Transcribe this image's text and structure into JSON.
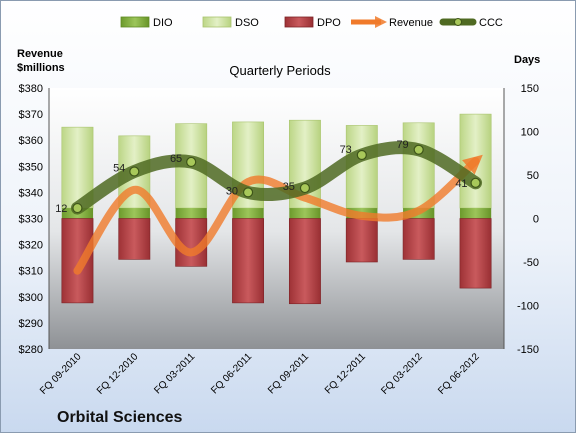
{
  "company": "Orbital Sciences",
  "chart_data": {
    "type": "combo",
    "title": "Quarterly Periods",
    "left_axis_label_line1": "Revenue",
    "left_axis_label_line2": "$millions",
    "right_axis_label": "Days",
    "left_ylim": [
      280,
      380
    ],
    "left_ticks": [
      "$280",
      "$290",
      "$300",
      "$310",
      "$320",
      "$330",
      "$340",
      "$350",
      "$360",
      "$370",
      "$380"
    ],
    "right_ylim": [
      -150,
      150
    ],
    "right_ticks": [
      "-150",
      "-100",
      "-50",
      "0",
      "50",
      "100",
      "150"
    ],
    "categories": [
      "FQ 09-2010",
      "FQ 12-2010",
      "FQ 03-2011",
      "FQ 06-2011",
      "FQ 09-2011",
      "FQ 12-2011",
      "FQ 03-2012",
      "FQ 06-2012"
    ],
    "legend": [
      "DIO",
      "DSO",
      "DPO",
      "Revenue",
      "CCC"
    ],
    "legend_position": "top",
    "series": [
      {
        "name": "DIO",
        "axis": "right",
        "kind": "bar",
        "color": "#7fae3a",
        "values": [
          12,
          12,
          12,
          12,
          12,
          12,
          12,
          12
        ]
      },
      {
        "name": "DSO",
        "axis": "right",
        "kind": "bar",
        "color": "#cfe4a4",
        "values": [
          93,
          83,
          97,
          99,
          101,
          95,
          98,
          108
        ]
      },
      {
        "name": "DPO",
        "axis": "right",
        "kind": "bar",
        "color": "#b9464a",
        "values": [
          -97,
          -47,
          -55,
          -97,
          -98,
          -50,
          -47,
          -80
        ]
      },
      {
        "name": "Revenue",
        "axis": "left",
        "kind": "line",
        "color": "#f07a2a",
        "values": [
          310,
          341,
          317,
          344,
          338,
          331,
          333,
          352
        ]
      },
      {
        "name": "CCC",
        "axis": "right",
        "kind": "line",
        "color": "#4f6a22",
        "values": [
          12,
          54,
          65,
          30,
          35,
          73,
          79,
          41
        ],
        "labels": [
          "12",
          "54",
          "65",
          "30",
          "35",
          "73",
          "79",
          "41"
        ]
      }
    ]
  }
}
